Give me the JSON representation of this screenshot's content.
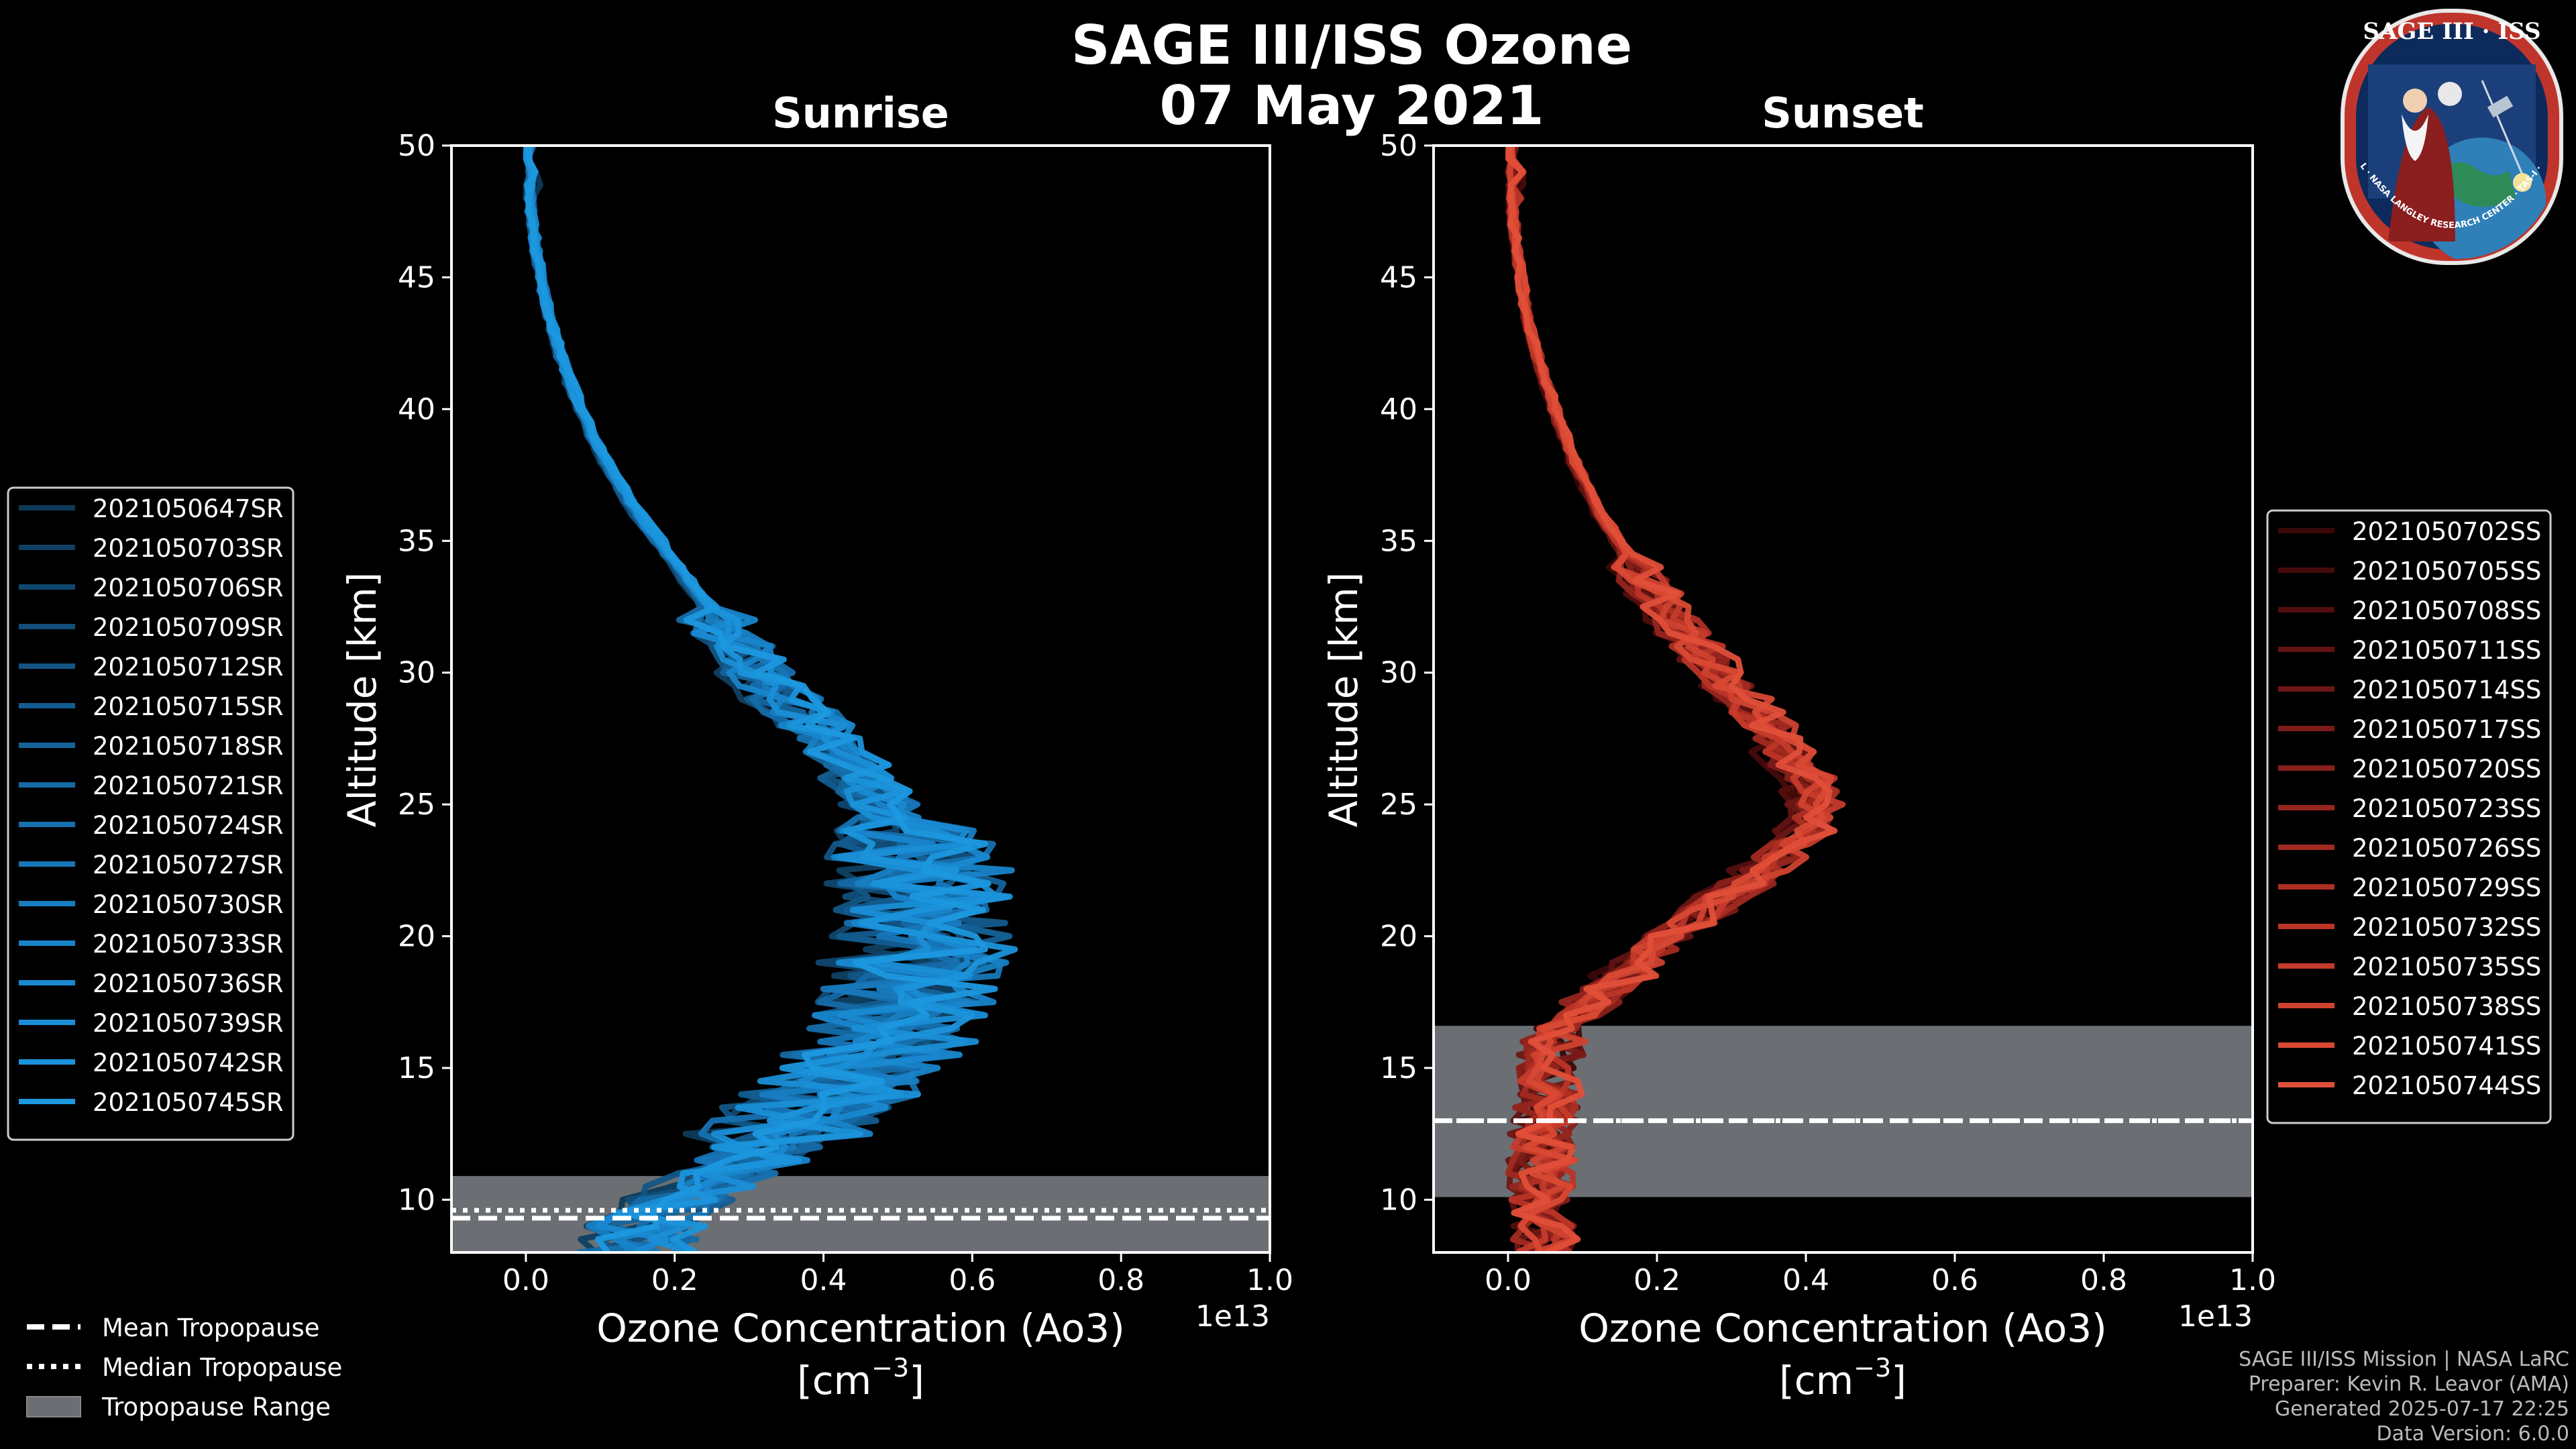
{
  "title": "SAGE III/ISS Ozone",
  "date": "07 May 2021",
  "colors": {
    "sunrise": "#1a8fd6",
    "sunset": "#e8503a",
    "tropo_fill": "#6b6e72",
    "background": "#000000"
  },
  "logo": {
    "top_text": "SAGE III · ISS",
    "ring_text": "BALL · NASA LANGLEY RESEARCH CENTER · TAS-I · ESA"
  },
  "legend_bottom": {
    "mean": "Mean Tropopause",
    "median": "Median Tropopause",
    "range": "Tropopause Range"
  },
  "credits": {
    "line1": "SAGE III/ISS Mission | NASA LaRC",
    "line2": "Preparer: Kevin R. Leavor (AMA)",
    "line3": "Generated 2025-07-17 22:25",
    "line4": "Data Version: 6.0.0"
  },
  "chart_data": [
    {
      "type": "line",
      "title": "Sunrise",
      "xlabel_line1": "Ozone Concentration (Ao3)",
      "xlabel_line2": "[cm",
      "xlabel_exp": "−3",
      "xlabel_close": "]",
      "offset_text": "1e13",
      "ylabel": "Altitude [km]",
      "xlim": [
        -0.1,
        1.0
      ],
      "ylim": [
        8,
        50
      ],
      "xticks": [
        0.0,
        0.2,
        0.4,
        0.6,
        0.8,
        1.0
      ],
      "xtick_labels": [
        "0.0",
        "0.2",
        "0.4",
        "0.6",
        "0.8",
        "1.0"
      ],
      "yticks": [
        10,
        15,
        20,
        25,
        30,
        35,
        40,
        45,
        50
      ],
      "ytick_labels": [
        "10",
        "15",
        "20",
        "25",
        "30",
        "35",
        "40",
        "45",
        "50"
      ],
      "tropopause": {
        "mean": 9.3,
        "median": 9.6,
        "range": [
          8.0,
          10.9
        ]
      },
      "mean_profile": [
        [
          50,
          0.0
        ],
        [
          48,
          0.005
        ],
        [
          46,
          0.013
        ],
        [
          44,
          0.025
        ],
        [
          42,
          0.043
        ],
        [
          40,
          0.068
        ],
        [
          38,
          0.1
        ],
        [
          36,
          0.14
        ],
        [
          34,
          0.19
        ],
        [
          32,
          0.24
        ],
        [
          30,
          0.29
        ],
        [
          28,
          0.36
        ],
        [
          26,
          0.42
        ],
        [
          24,
          0.47
        ],
        [
          22,
          0.5
        ],
        [
          20,
          0.5
        ],
        [
          18,
          0.48
        ],
        [
          16,
          0.45
        ],
        [
          14,
          0.38
        ],
        [
          12,
          0.3
        ],
        [
          11,
          0.25
        ],
        [
          10,
          0.19
        ],
        [
          9,
          0.15
        ],
        [
          8,
          0.14
        ]
      ],
      "series": [
        {
          "name": "2021050647SR",
          "color": "#0e3a58"
        },
        {
          "name": "2021050703SR",
          "color": "#0f4063"
        },
        {
          "name": "2021050706SR",
          "color": "#10476e"
        },
        {
          "name": "2021050709SR",
          "color": "#114e79"
        },
        {
          "name": "2021050712SR",
          "color": "#125584"
        },
        {
          "name": "2021050715SR",
          "color": "#135c8f"
        },
        {
          "name": "2021050718SR",
          "color": "#14639a"
        },
        {
          "name": "2021050721SR",
          "color": "#156aa5"
        },
        {
          "name": "2021050724SR",
          "color": "#1671b0"
        },
        {
          "name": "2021050727SR",
          "color": "#1777b9"
        },
        {
          "name": "2021050730SR",
          "color": "#177ec2"
        },
        {
          "name": "2021050733SR",
          "color": "#1884ca"
        },
        {
          "name": "2021050736SR",
          "color": "#1989d1"
        },
        {
          "name": "2021050739SR",
          "color": "#1a8ed6"
        },
        {
          "name": "2021050742SR",
          "color": "#1b93db"
        },
        {
          "name": "2021050745SR",
          "color": "#1c98df"
        }
      ]
    },
    {
      "type": "line",
      "title": "Sunset",
      "xlabel_line1": "Ozone Concentration (Ao3)",
      "xlabel_line2": "[cm",
      "xlabel_exp": "−3",
      "xlabel_close": "]",
      "offset_text": "1e13",
      "ylabel": "Altitude [km]",
      "xlim": [
        -0.1,
        1.0
      ],
      "ylim": [
        8,
        50
      ],
      "xticks": [
        0.0,
        0.2,
        0.4,
        0.6,
        0.8,
        1.0
      ],
      "xtick_labels": [
        "0.0",
        "0.2",
        "0.4",
        "0.6",
        "0.8",
        "1.0"
      ],
      "yticks": [
        10,
        15,
        20,
        25,
        30,
        35,
        40,
        45,
        50
      ],
      "ytick_labels": [
        "10",
        "15",
        "20",
        "25",
        "30",
        "35",
        "40",
        "45",
        "50"
      ],
      "tropopause": {
        "mean": 13.0,
        "median": 13.0,
        "range": [
          10.1,
          16.6
        ]
      },
      "mean_profile": [
        [
          50,
          0.0
        ],
        [
          48,
          0.005
        ],
        [
          46,
          0.013
        ],
        [
          44,
          0.025
        ],
        [
          42,
          0.045
        ],
        [
          40,
          0.07
        ],
        [
          38,
          0.1
        ],
        [
          36,
          0.14
        ],
        [
          34,
          0.19
        ],
        [
          32,
          0.25
        ],
        [
          30,
          0.32
        ],
        [
          28,
          0.39
        ],
        [
          26,
          0.45
        ],
        [
          25,
          0.47
        ],
        [
          24,
          0.45
        ],
        [
          22,
          0.36
        ],
        [
          20,
          0.25
        ],
        [
          18,
          0.15
        ],
        [
          17,
          0.1
        ],
        [
          16,
          0.07
        ],
        [
          14,
          0.06
        ],
        [
          12,
          0.05
        ],
        [
          10,
          0.05
        ],
        [
          8,
          0.06
        ]
      ],
      "series": [
        {
          "name": "2021050702SS",
          "color": "#3a0808"
        },
        {
          "name": "2021050705SS",
          "color": "#460b0b"
        },
        {
          "name": "2021050708SS",
          "color": "#530f0e"
        },
        {
          "name": "2021050711SS",
          "color": "#601311"
        },
        {
          "name": "2021050714SS",
          "color": "#6d1714"
        },
        {
          "name": "2021050717SS",
          "color": "#7b1b17"
        },
        {
          "name": "2021050720SS",
          "color": "#88201a"
        },
        {
          "name": "2021050723SS",
          "color": "#95251d"
        },
        {
          "name": "2021050726SS",
          "color": "#a22a20"
        },
        {
          "name": "2021050729SS",
          "color": "#ae2f23"
        },
        {
          "name": "2021050732SS",
          "color": "#ba3527"
        },
        {
          "name": "2021050735SS",
          "color": "#c53b2b"
        },
        {
          "name": "2021050738SS",
          "color": "#cf422f"
        },
        {
          "name": "2021050741SS",
          "color": "#d84934"
        },
        {
          "name": "2021050744SS",
          "color": "#e04f39"
        }
      ]
    }
  ]
}
